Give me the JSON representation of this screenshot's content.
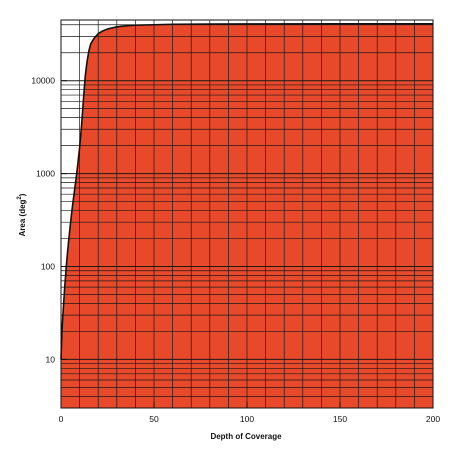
{
  "chart_data": {
    "type": "area",
    "title": "",
    "xlabel": "Depth of Coverage",
    "ylabel": "Area (deg²)",
    "ylabel_text": "Area (deg",
    "ylabel_superscript": "2",
    "ylabel_close": ")",
    "x_scale": "linear",
    "y_scale": "log",
    "xlim": [
      0,
      200
    ],
    "ylim": [
      3,
      45000
    ],
    "x_ticks": [
      0,
      50,
      100,
      150,
      200
    ],
    "x_tick_labels": [
      "0",
      "50",
      "100",
      "150",
      "200"
    ],
    "y_ticks": [
      10,
      100,
      1000,
      10000
    ],
    "y_tick_labels": [
      "10",
      "100",
      "1000",
      "10000"
    ],
    "x_grid_step": 10,
    "grid": true,
    "legend": "none",
    "fill_color": "#e8492a",
    "line_color": "#111111",
    "series": [
      {
        "x": [
          0,
          0.5,
          1,
          2,
          3,
          4,
          5,
          6,
          7,
          8,
          9,
          10,
          11,
          12,
          13,
          14,
          15,
          16,
          18,
          20,
          22,
          25,
          30,
          35,
          40,
          50,
          60,
          80,
          100,
          150,
          200
        ],
        "y": [
          10,
          20,
          30,
          60,
          110,
          180,
          280,
          420,
          600,
          850,
          1250,
          1900,
          3200,
          6000,
          11000,
          16000,
          21000,
          25000,
          29000,
          32000,
          34000,
          36000,
          38000,
          39000,
          39500,
          40000,
          40500,
          40700,
          40800,
          41000,
          41000
        ]
      }
    ]
  }
}
